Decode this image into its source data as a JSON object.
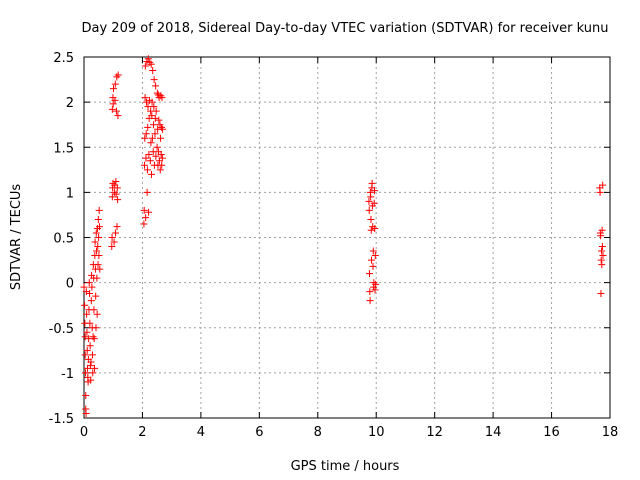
{
  "chart_data": {
    "type": "scatter",
    "title": "Day 209 of 2018, Sidereal Day-to-day VTEC variation (SDTVAR) for receiver kunu",
    "xlabel": "GPS time / hours",
    "ylabel": "SDTVAR / TECUs",
    "xlim": [
      0,
      18
    ],
    "ylim": [
      -1.5,
      2.5
    ],
    "x_ticks": [
      0,
      2,
      4,
      6,
      8,
      10,
      12,
      14,
      16,
      18
    ],
    "y_ticks": [
      -1.5,
      -1,
      -0.5,
      0,
      0.5,
      1,
      1.5,
      2,
      2.5
    ],
    "x_tick_labels": [
      "0",
      "2",
      "4",
      "6",
      "8",
      "10",
      "12",
      "14",
      "16",
      "18"
    ],
    "y_tick_labels": [
      "-1.5",
      "-1",
      "-0.5",
      "0",
      "0.5",
      "1",
      "1.5",
      "2",
      "2.5"
    ],
    "grid": true,
    "marker": "+",
    "marker_color": "#ff0000",
    "series": [
      {
        "name": "SDTVAR",
        "points": [
          [
            0.0,
            -0.05
          ],
          [
            0.02,
            -0.25
          ],
          [
            0.03,
            -0.45
          ],
          [
            0.04,
            -0.6
          ],
          [
            0.04,
            -0.8
          ],
          [
            0.05,
            -1.0
          ],
          [
            0.06,
            -1.25
          ],
          [
            0.06,
            -1.4
          ],
          [
            0.07,
            -1.45
          ],
          [
            0.08,
            -0.1
          ],
          [
            0.09,
            -0.35
          ],
          [
            0.1,
            -0.55
          ],
          [
            0.11,
            -0.75
          ],
          [
            0.12,
            -0.95
          ],
          [
            0.13,
            -1.05
          ],
          [
            0.14,
            -1.1
          ],
          [
            0.15,
            -0.85
          ],
          [
            0.16,
            -0.62
          ],
          [
            0.17,
            -0.3
          ],
          [
            0.18,
            0.0
          ],
          [
            0.19,
            -0.12
          ],
          [
            0.2,
            -0.45
          ],
          [
            0.21,
            -0.7
          ],
          [
            0.22,
            -0.92
          ],
          [
            0.23,
            -1.08
          ],
          [
            0.24,
            -0.88
          ],
          [
            0.25,
            -0.2
          ],
          [
            0.26,
            0.08
          ],
          [
            0.27,
            -0.05
          ],
          [
            0.28,
            -0.5
          ],
          [
            0.29,
            -0.8
          ],
          [
            0.3,
            -1.0
          ],
          [
            0.31,
            -0.6
          ],
          [
            0.32,
            0.2
          ],
          [
            0.33,
            0.05
          ],
          [
            0.34,
            -0.3
          ],
          [
            0.35,
            -0.62
          ],
          [
            0.36,
            -0.95
          ],
          [
            0.37,
            0.3
          ],
          [
            0.38,
            0.45
          ],
          [
            0.39,
            0.15
          ],
          [
            0.4,
            -0.15
          ],
          [
            0.41,
            -0.5
          ],
          [
            0.42,
            0.55
          ],
          [
            0.43,
            0.35
          ],
          [
            0.44,
            0.05
          ],
          [
            0.45,
            -0.35
          ],
          [
            0.46,
            0.6
          ],
          [
            0.47,
            0.4
          ],
          [
            0.48,
            0.2
          ],
          [
            0.49,
            0.7
          ],
          [
            0.5,
            0.5
          ],
          [
            0.51,
            0.3
          ],
          [
            0.52,
            0.8
          ],
          [
            0.53,
            0.62
          ],
          [
            0.54,
            0.15
          ],
          [
            0.95,
            0.4
          ],
          [
            0.96,
            0.5
          ],
          [
            0.97,
            0.95
          ],
          [
            0.98,
            1.05
          ],
          [
            0.99,
            1.1
          ],
          [
            0.97,
            1.92
          ],
          [
            0.99,
            2.05
          ],
          [
            1.0,
            1.98
          ],
          [
            1.01,
            2.15
          ],
          [
            1.03,
            0.45
          ],
          [
            1.04,
            1.0
          ],
          [
            1.05,
            1.08
          ],
          [
            1.06,
            2.02
          ],
          [
            1.07,
            2.2
          ],
          [
            1.08,
            0.55
          ],
          [
            1.09,
            1.12
          ],
          [
            1.1,
            0.98
          ],
          [
            1.11,
            1.9
          ],
          [
            1.12,
            2.28
          ],
          [
            1.13,
            0.62
          ],
          [
            1.14,
            1.05
          ],
          [
            1.15,
            0.92
          ],
          [
            1.16,
            1.85
          ],
          [
            1.17,
            2.3
          ],
          [
            2.05,
            0.65
          ],
          [
            2.06,
            0.8
          ],
          [
            2.07,
            1.3
          ],
          [
            2.08,
            1.6
          ],
          [
            2.09,
            2.05
          ],
          [
            2.1,
            2.4
          ],
          [
            2.11,
            0.72
          ],
          [
            2.12,
            1.38
          ],
          [
            2.13,
            1.65
          ],
          [
            2.14,
            2.0
          ],
          [
            2.15,
            2.45
          ],
          [
            2.16,
            1.0
          ],
          [
            2.17,
            1.25
          ],
          [
            2.18,
            1.72
          ],
          [
            2.19,
            1.95
          ],
          [
            2.2,
            2.48
          ],
          [
            2.21,
            0.78
          ],
          [
            2.22,
            1.42
          ],
          [
            2.23,
            1.82
          ],
          [
            2.24,
            2.02
          ],
          [
            2.25,
            2.44
          ],
          [
            2.27,
            1.35
          ],
          [
            2.28,
            1.9
          ],
          [
            2.29,
            1.55
          ],
          [
            2.3,
            2.42
          ],
          [
            2.31,
            1.2
          ],
          [
            2.32,
            1.85
          ],
          [
            2.33,
            2.0
          ],
          [
            2.34,
            1.6
          ],
          [
            2.35,
            2.35
          ],
          [
            2.37,
            1.45
          ],
          [
            2.38,
            1.75
          ],
          [
            2.39,
            1.95
          ],
          [
            2.4,
            2.25
          ],
          [
            2.41,
            1.3
          ],
          [
            2.43,
            1.65
          ],
          [
            2.44,
            1.82
          ],
          [
            2.45,
            2.18
          ],
          [
            2.46,
            1.4
          ],
          [
            2.47,
            1.9
          ],
          [
            2.5,
            1.5
          ],
          [
            2.51,
            2.1
          ],
          [
            2.52,
            1.7
          ],
          [
            2.53,
            1.3
          ],
          [
            2.54,
            2.08
          ],
          [
            2.55,
            1.45
          ],
          [
            2.56,
            1.8
          ],
          [
            2.57,
            2.05
          ],
          [
            2.58,
            1.35
          ],
          [
            2.6,
            1.75
          ],
          [
            2.61,
            1.25
          ],
          [
            2.62,
            1.6
          ],
          [
            2.63,
            2.07
          ],
          [
            2.64,
            1.42
          ],
          [
            2.65,
            1.72
          ],
          [
            2.66,
            1.3
          ],
          [
            2.67,
            2.05
          ],
          [
            2.68,
            1.38
          ],
          [
            2.69,
            1.7
          ],
          [
            9.75,
            0.9
          ],
          [
            9.76,
            0.8
          ],
          [
            9.77,
            0.1
          ],
          [
            9.78,
            -0.1
          ],
          [
            9.79,
            -0.2
          ],
          [
            9.8,
            1.0
          ],
          [
            9.81,
            0.95
          ],
          [
            9.82,
            0.7
          ],
          [
            9.83,
            0.58
          ],
          [
            9.84,
            0.25
          ],
          [
            9.85,
            1.05
          ],
          [
            9.86,
            1.1
          ],
          [
            9.87,
            0.85
          ],
          [
            9.88,
            0.62
          ],
          [
            9.89,
            0.18
          ],
          [
            9.9,
            0.35
          ],
          [
            9.91,
            -0.05
          ],
          [
            9.92,
            0.0
          ],
          [
            9.93,
            0.88
          ],
          [
            9.94,
            1.02
          ],
          [
            9.95,
            0.6
          ],
          [
            9.96,
            -0.08
          ],
          [
            9.97,
            0.3
          ],
          [
            9.98,
            -0.02
          ],
          [
            17.65,
            1.05
          ],
          [
            17.66,
            1.0
          ],
          [
            17.67,
            0.55
          ],
          [
            17.68,
            0.52
          ],
          [
            17.69,
            -0.12
          ],
          [
            17.7,
            0.25
          ],
          [
            17.71,
            0.35
          ],
          [
            17.72,
            0.2
          ],
          [
            17.73,
            0.58
          ],
          [
            17.74,
            0.4
          ],
          [
            17.75,
            1.08
          ],
          [
            17.76,
            0.3
          ]
        ]
      }
    ]
  }
}
